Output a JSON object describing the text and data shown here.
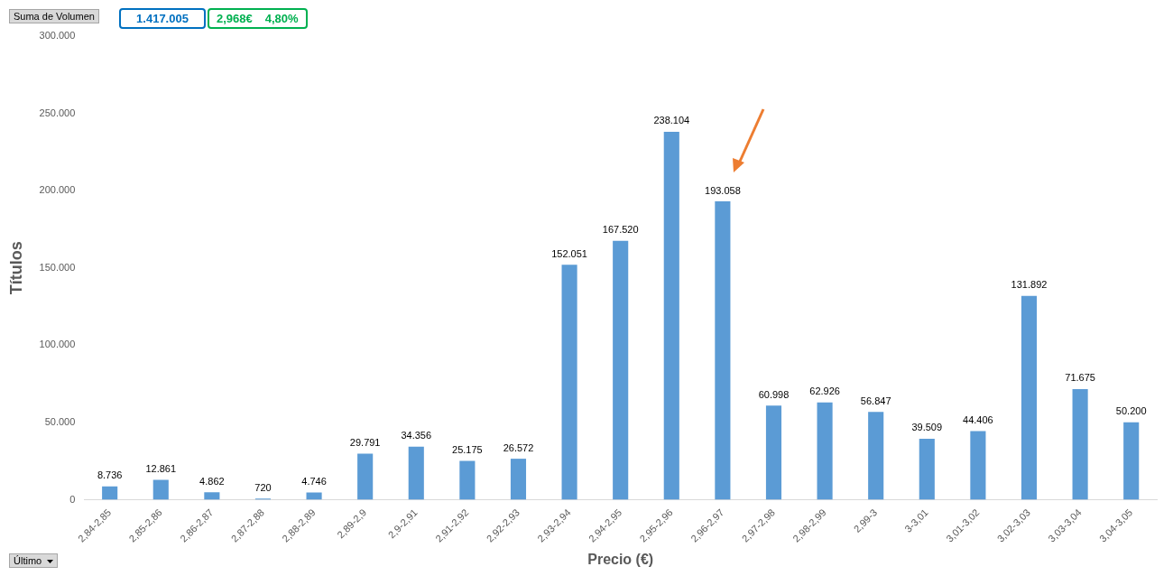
{
  "chart_data": {
    "type": "bar",
    "xlabel": "Precio (€)",
    "ylabel": "Títulos",
    "annotations": [
      "Suma de Volumen",
      "1.417.005",
      "2,968€",
      "4,80%",
      "Último"
    ],
    "categories": [
      "2,84-2,85",
      "2,85-2,86",
      "2,86-2,87",
      "2,87-2,88",
      "2,88-2,89",
      "2,89-2,9",
      "2,9-2,91",
      "2,91-2,92",
      "2,92-2,93",
      "2,93-2,94",
      "2,94-2,95",
      "2,95-2,96",
      "2,96-2,97",
      "2,97-2,98",
      "2,98-2,99",
      "2,99-3",
      "3-3,01",
      "3,01-3,02",
      "3,02-3,03",
      "3,03-3,04",
      "3,04-3,05"
    ],
    "values": [
      8736,
      12861,
      4862,
      720,
      4746,
      29791,
      34356,
      25175,
      26572,
      152051,
      167520,
      238104,
      193058,
      60998,
      62926,
      56847,
      39509,
      44406,
      131892,
      71675,
      50200
    ],
    "value_labels": [
      "8.736",
      "12.861",
      "4.862",
      "720",
      "4.746",
      "29.791",
      "34.356",
      "25.175",
      "26.572",
      "152.051",
      "167.520",
      "238.104",
      "193.058",
      "60.998",
      "62.926",
      "56.847",
      "39.509",
      "44.406",
      "131.892",
      "71.675",
      "50.200"
    ],
    "color": "#5b9bd5",
    "ylim": [
      0,
      300000
    ],
    "yticks": [
      {
        "value": 0,
        "label": "0"
      },
      {
        "value": 50000,
        "label": "50.000"
      },
      {
        "value": 100000,
        "label": "100.000"
      },
      {
        "value": 150000,
        "label": "150.000"
      },
      {
        "value": 200000,
        "label": "200.000"
      },
      {
        "value": 250000,
        "label": "250.000"
      },
      {
        "value": 300000,
        "label": "300.000"
      }
    ],
    "grid": false,
    "legend": false
  }
}
